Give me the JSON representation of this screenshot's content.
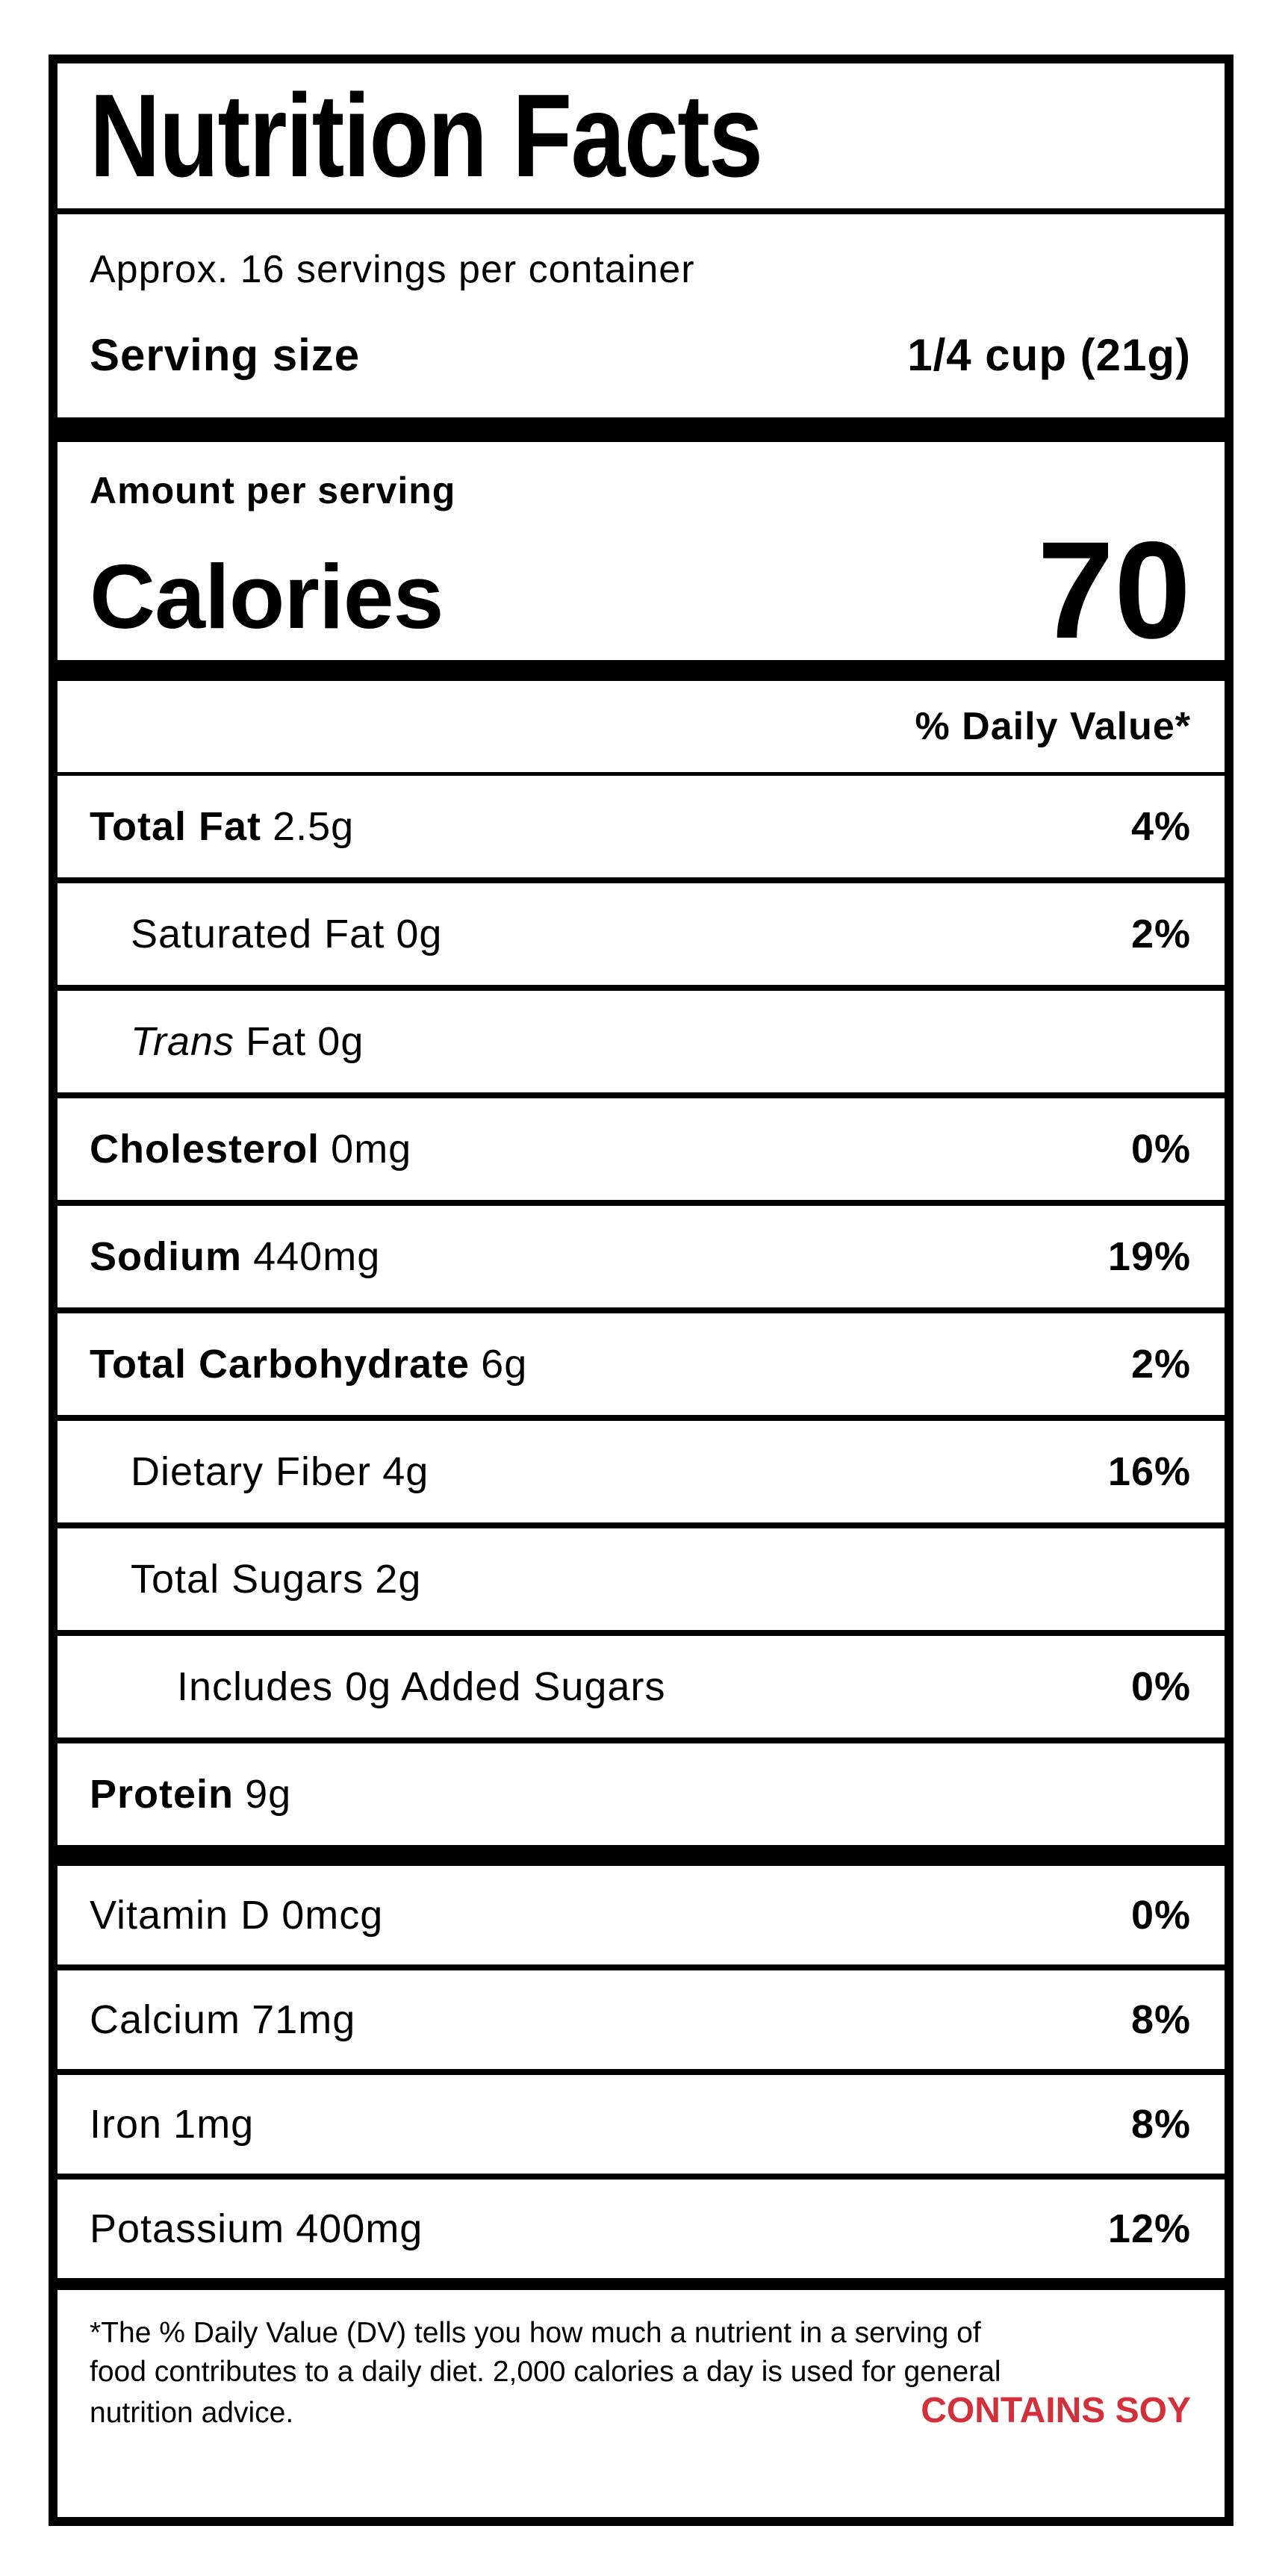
{
  "label": {
    "title": "Nutrition Facts",
    "servings_per_container": "Approx. 16 servings per container",
    "serving_size_label": "Serving size",
    "serving_size_value": "1/4 cup (21g)",
    "amount_per_serving": "Amount per serving",
    "calories_label": "Calories",
    "calories_value": "70",
    "daily_value_header": "% Daily Value*",
    "rows": [
      {
        "name": "Total Fat",
        "amount": "2.5g",
        "dv": "4%",
        "bold": true,
        "indent": 0
      },
      {
        "name": "Saturated Fat",
        "amount": "0g",
        "dv": "2%",
        "bold": false,
        "indent": 1
      },
      {
        "name_italic": "Trans",
        "name": "Fat",
        "amount": "0g",
        "dv": "",
        "bold": false,
        "indent": 1
      },
      {
        "name": "Cholesterol",
        "amount": "0mg",
        "dv": "0%",
        "bold": true,
        "indent": 0
      },
      {
        "name": "Sodium",
        "amount": "440mg",
        "dv": "19%",
        "bold": true,
        "indent": 0
      },
      {
        "name": "Total Carbohydrate",
        "amount": "6g",
        "dv": "2%",
        "bold": true,
        "indent": 0
      },
      {
        "name": "Dietary Fiber",
        "amount": "4g",
        "dv": "16%",
        "bold": false,
        "indent": 1
      },
      {
        "name": "Total Sugars",
        "amount": "2g",
        "dv": "",
        "bold": false,
        "indent": 1
      },
      {
        "name": "Includes 0g Added Sugars",
        "amount": "",
        "dv": "0%",
        "bold": false,
        "indent": 2
      },
      {
        "name": "Protein",
        "amount": "9g",
        "dv": "",
        "bold": true,
        "indent": 0
      }
    ],
    "micronutrients": [
      {
        "name": "Vitamin D",
        "amount": "0mcg",
        "dv": "0%"
      },
      {
        "name": "Calcium",
        "amount": "71mg",
        "dv": "8%"
      },
      {
        "name": "Iron",
        "amount": "1mg",
        "dv": "8%"
      },
      {
        "name": "Potassium",
        "amount": "400mg",
        "dv": "12%"
      }
    ],
    "footnote_lines": [
      "*The % Daily Value (DV) tells you how much a nutrient in a serving of",
      "food contributes to a daily diet. 2,000 calories a day is used for general",
      "nutrition advice."
    ],
    "allergen": "CONTAINS SOY",
    "colors": {
      "allergen_red": "#d2303a",
      "text": "#000000",
      "background": "#ffffff"
    }
  }
}
